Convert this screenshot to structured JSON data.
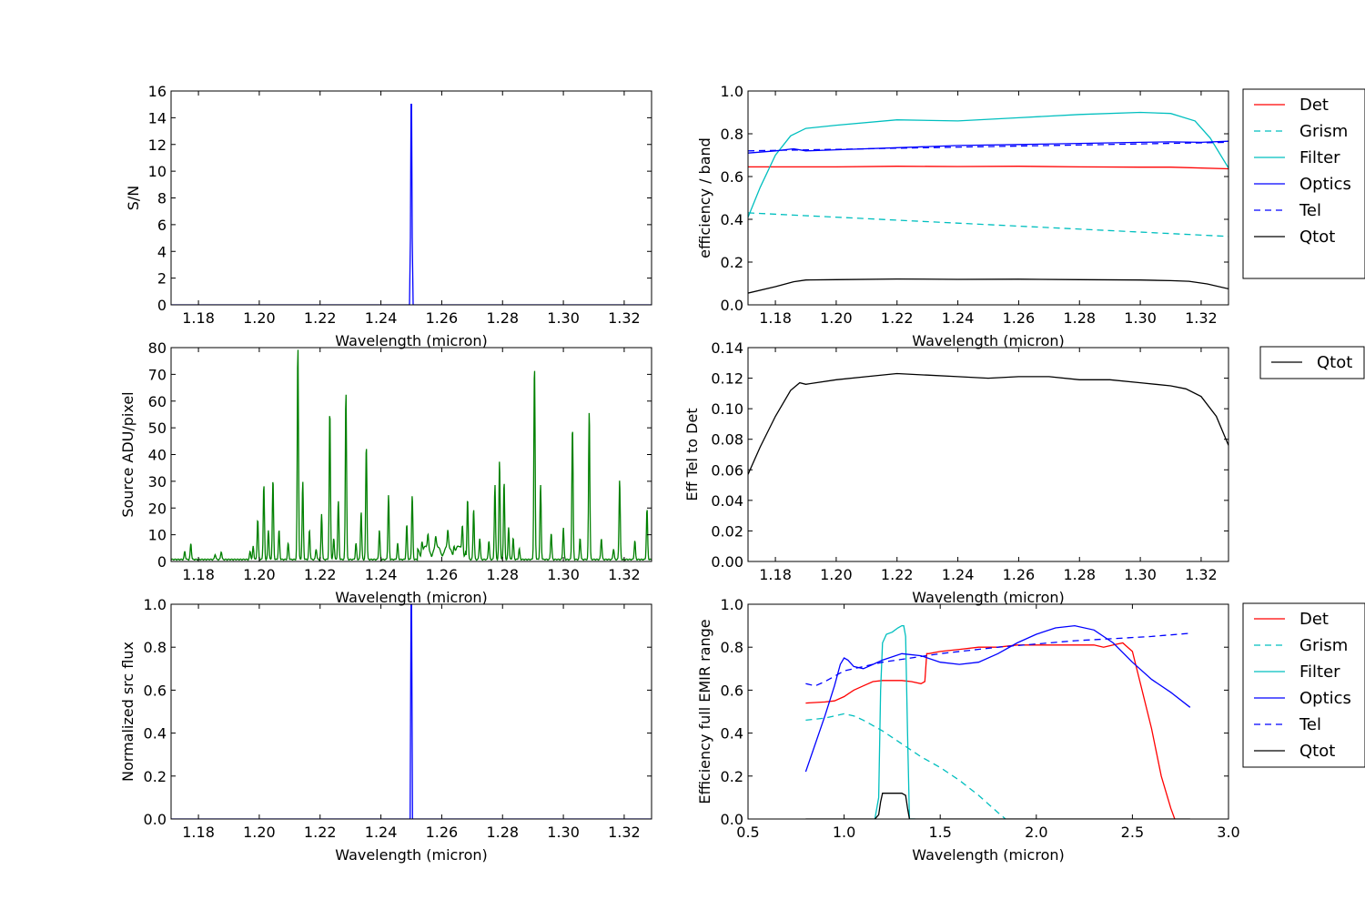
{
  "colors": {
    "Det": "#ff0000",
    "Grism": "#00bfbf",
    "Filter": "#00bfbf",
    "Optics": "#0000ff",
    "Tel": "#0000ff",
    "Qtot": "#000000",
    "sn": "#0000ff",
    "source": "#008000",
    "flux": "#0000ff"
  },
  "chart_data": [
    {
      "id": "sn",
      "type": "line",
      "xlabel": "Wavelength (micron)",
      "ylabel": "S/N",
      "xlim": [
        1.171,
        1.329
      ],
      "ylim": [
        0,
        16
      ],
      "xticks": [
        "1.18",
        "1.20",
        "1.22",
        "1.24",
        "1.26",
        "1.28",
        "1.30",
        "1.32"
      ],
      "yticks": [
        "0",
        "2",
        "4",
        "6",
        "8",
        "10",
        "12",
        "14",
        "16"
      ],
      "series": [
        {
          "color": "sn",
          "style": "solid",
          "x": [
            1.171,
            1.2494,
            1.2497,
            1.2499,
            1.2501,
            1.2503,
            1.2506,
            1.329
          ],
          "y": [
            0,
            0,
            5,
            15.0,
            15.0,
            5,
            0,
            0
          ]
        }
      ]
    },
    {
      "id": "eff",
      "type": "line",
      "xlabel": "Wavelength (micron)",
      "ylabel": "efficiency / band",
      "xlim": [
        1.171,
        1.329
      ],
      "ylim": [
        0,
        1.0
      ],
      "xticks": [
        "1.18",
        "1.20",
        "1.22",
        "1.24",
        "1.26",
        "1.28",
        "1.30",
        "1.32"
      ],
      "yticks": [
        "0.0",
        "0.2",
        "0.4",
        "0.6",
        "0.8",
        "1.0"
      ],
      "legend": [
        "Det",
        "Grism",
        "Filter",
        "Optics",
        "Tel",
        "Qtot"
      ],
      "series": [
        {
          "name": "Det",
          "color": "Det",
          "style": "solid",
          "x": [
            1.171,
            1.2,
            1.22,
            1.24,
            1.26,
            1.28,
            1.3,
            1.31,
            1.329
          ],
          "y": [
            0.645,
            0.645,
            0.648,
            0.647,
            0.648,
            0.645,
            0.644,
            0.644,
            0.636
          ]
        },
        {
          "name": "Grism",
          "color": "Grism",
          "style": "dashed",
          "x": [
            1.171,
            1.329
          ],
          "y": [
            0.43,
            0.32
          ]
        },
        {
          "name": "Filter",
          "color": "Filter",
          "style": "solid",
          "x": [
            1.171,
            1.175,
            1.18,
            1.185,
            1.19,
            1.2,
            1.22,
            1.24,
            1.26,
            1.28,
            1.3,
            1.31,
            1.318,
            1.323,
            1.329
          ],
          "y": [
            0.41,
            0.55,
            0.7,
            0.79,
            0.825,
            0.84,
            0.865,
            0.86,
            0.875,
            0.89,
            0.9,
            0.895,
            0.86,
            0.78,
            0.64
          ]
        },
        {
          "name": "Optics",
          "color": "Optics",
          "style": "solid",
          "x": [
            1.171,
            1.18,
            1.186,
            1.19,
            1.2,
            1.22,
            1.24,
            1.26,
            1.28,
            1.3,
            1.31,
            1.32,
            1.329
          ],
          "y": [
            0.71,
            0.72,
            0.73,
            0.72,
            0.725,
            0.735,
            0.745,
            0.75,
            0.755,
            0.76,
            0.762,
            0.76,
            0.765
          ]
        },
        {
          "name": "Tel",
          "color": "Tel",
          "style": "dashed",
          "x": [
            1.171,
            1.329
          ],
          "y": [
            0.72,
            0.76
          ]
        },
        {
          "name": "Qtot",
          "color": "Qtot",
          "style": "solid",
          "x": [
            1.171,
            1.18,
            1.186,
            1.19,
            1.2,
            1.22,
            1.24,
            1.26,
            1.28,
            1.3,
            1.31,
            1.316,
            1.322,
            1.329
          ],
          "y": [
            0.055,
            0.085,
            0.108,
            0.116,
            0.118,
            0.121,
            0.119,
            0.12,
            0.118,
            0.116,
            0.113,
            0.11,
            0.098,
            0.075
          ]
        }
      ]
    },
    {
      "id": "source",
      "type": "line",
      "xlabel": "Wavelength (micron)",
      "ylabel": "Source ADU/pixel",
      "xlim": [
        1.171,
        1.329
      ],
      "ylim": [
        0,
        80
      ],
      "xticks": [
        "1.18",
        "1.20",
        "1.22",
        "1.24",
        "1.26",
        "1.28",
        "1.30",
        "1.32"
      ],
      "yticks": [
        "0",
        "10",
        "20",
        "30",
        "40",
        "50",
        "60",
        "70",
        "80"
      ],
      "baseline": 0.5,
      "peaks": [
        [
          1.1755,
          3
        ],
        [
          1.1775,
          6
        ],
        [
          1.1855,
          2
        ],
        [
          1.1875,
          3
        ],
        [
          1.197,
          3
        ],
        [
          1.198,
          5
        ],
        [
          1.1995,
          15
        ],
        [
          1.2015,
          28
        ],
        [
          1.203,
          11
        ],
        [
          1.2045,
          30
        ],
        [
          1.2065,
          11
        ],
        [
          1.2095,
          6
        ],
        [
          1.2127,
          80
        ],
        [
          1.2143,
          29
        ],
        [
          1.2165,
          11
        ],
        [
          1.2187,
          4
        ],
        [
          1.2205,
          17
        ],
        [
          1.2232,
          56
        ],
        [
          1.2245,
          8
        ],
        [
          1.226,
          22
        ],
        [
          1.2285,
          63
        ],
        [
          1.2318,
          6
        ],
        [
          1.2335,
          18
        ],
        [
          1.2352,
          43
        ],
        [
          1.2395,
          11
        ],
        [
          1.2425,
          24
        ],
        [
          1.2455,
          6
        ],
        [
          1.2485,
          13
        ],
        [
          1.2503,
          24
        ],
        [
          1.2535,
          4
        ],
        [
          1.2555,
          5
        ],
        [
          1.258,
          4
        ],
        [
          1.262,
          6
        ],
        [
          1.264,
          3
        ],
        [
          1.2668,
          10
        ],
        [
          1.2685,
          23
        ],
        [
          1.2705,
          19
        ],
        [
          1.2725,
          8
        ],
        [
          1.2755,
          7
        ],
        [
          1.2775,
          28
        ],
        [
          1.279,
          37
        ],
        [
          1.2805,
          29
        ],
        [
          1.282,
          12
        ],
        [
          1.2835,
          8
        ],
        [
          1.2855,
          4
        ],
        [
          1.2905,
          73
        ],
        [
          1.2925,
          28
        ],
        [
          1.296,
          10
        ],
        [
          1.3,
          12
        ],
        [
          1.303,
          50
        ],
        [
          1.3055,
          8
        ],
        [
          1.3085,
          56
        ],
        [
          1.3125,
          8
        ],
        [
          1.3165,
          4
        ],
        [
          1.3185,
          30
        ],
        [
          1.3235,
          7
        ],
        [
          1.3275,
          19
        ]
      ],
      "series": [
        {
          "color": "source",
          "style": "solid"
        }
      ]
    },
    {
      "id": "tel",
      "type": "line",
      "xlabel": "Wavelength (micron)",
      "ylabel": "Eff Tel to Det",
      "xlim": [
        1.171,
        1.329
      ],
      "ylim": [
        0,
        0.14
      ],
      "xticks": [
        "1.18",
        "1.20",
        "1.22",
        "1.24",
        "1.26",
        "1.28",
        "1.30",
        "1.32"
      ],
      "yticks": [
        "0.00",
        "0.02",
        "0.04",
        "0.06",
        "0.08",
        "0.10",
        "0.12",
        "0.14"
      ],
      "legend": [
        "Qtot"
      ],
      "series": [
        {
          "name": "Qtot",
          "color": "Qtot",
          "style": "solid",
          "x": [
            1.171,
            1.175,
            1.18,
            1.185,
            1.188,
            1.19,
            1.2,
            1.21,
            1.22,
            1.23,
            1.24,
            1.25,
            1.26,
            1.27,
            1.28,
            1.29,
            1.3,
            1.31,
            1.315,
            1.32,
            1.325,
            1.329
          ],
          "y": [
            0.057,
            0.075,
            0.095,
            0.112,
            0.117,
            0.116,
            0.119,
            0.121,
            0.123,
            0.122,
            0.121,
            0.12,
            0.121,
            0.121,
            0.119,
            0.119,
            0.117,
            0.115,
            0.113,
            0.108,
            0.095,
            0.076
          ]
        }
      ]
    },
    {
      "id": "flux",
      "type": "line",
      "xlabel": "Wavelength (micron)",
      "ylabel": "Normalized src flux",
      "xlim": [
        1.171,
        1.329
      ],
      "ylim": [
        0,
        1.0
      ],
      "xticks": [
        "1.18",
        "1.20",
        "1.22",
        "1.24",
        "1.26",
        "1.28",
        "1.30",
        "1.32"
      ],
      "yticks": [
        "0.0",
        "0.2",
        "0.4",
        "0.6",
        "0.8",
        "1.0"
      ],
      "series": [
        {
          "color": "flux",
          "style": "solid",
          "x": [
            1.171,
            1.2496,
            1.2499,
            1.2501,
            1.2504,
            1.329
          ],
          "y": [
            0,
            0,
            1.0,
            1.0,
            0,
            0
          ]
        }
      ]
    },
    {
      "id": "full",
      "type": "line",
      "xlabel": "Wavelength (micron)",
      "ylabel": "Efficiency full EMIR range",
      "xlim": [
        0.5,
        3.0
      ],
      "ylim": [
        0,
        1.0
      ],
      "xticks": [
        "0.5",
        "1.0",
        "1.5",
        "2.0",
        "2.5",
        "3.0"
      ],
      "yticks": [
        "0.0",
        "0.2",
        "0.4",
        "0.6",
        "0.8",
        "1.0"
      ],
      "legend": [
        "Det",
        "Grism",
        "Filter",
        "Optics",
        "Tel",
        "Qtot"
      ],
      "series": [
        {
          "name": "Det",
          "color": "Det",
          "style": "solid",
          "x": [
            0.8,
            0.9,
            0.95,
            1.0,
            1.05,
            1.1,
            1.15,
            1.2,
            1.3,
            1.35,
            1.4,
            1.42,
            1.43,
            1.44,
            1.5,
            1.6,
            1.7,
            1.8,
            1.9,
            2.0,
            2.1,
            2.2,
            2.3,
            2.35,
            2.4,
            2.45,
            2.5,
            2.55,
            2.6,
            2.65,
            2.7,
            2.72
          ],
          "y": [
            0.54,
            0.545,
            0.55,
            0.57,
            0.6,
            0.62,
            0.64,
            0.645,
            0.645,
            0.64,
            0.63,
            0.64,
            0.77,
            0.77,
            0.78,
            0.79,
            0.8,
            0.8,
            0.81,
            0.81,
            0.81,
            0.81,
            0.81,
            0.8,
            0.81,
            0.82,
            0.78,
            0.6,
            0.42,
            0.2,
            0.05,
            0.0
          ]
        },
        {
          "name": "Grism",
          "color": "Grism",
          "style": "dashed",
          "x": [
            0.8,
            0.9,
            1.0,
            1.05,
            1.1,
            1.2,
            1.3,
            1.4,
            1.5,
            1.6,
            1.7,
            1.8,
            1.84
          ],
          "y": [
            0.46,
            0.47,
            0.49,
            0.48,
            0.46,
            0.41,
            0.35,
            0.29,
            0.24,
            0.18,
            0.11,
            0.03,
            0.0
          ]
        },
        {
          "name": "Filter",
          "color": "Filter",
          "style": "solid",
          "x": [
            1.16,
            1.18,
            1.19,
            1.2,
            1.22,
            1.25,
            1.28,
            1.3,
            1.31,
            1.32,
            1.33,
            1.34,
            1.37
          ],
          "y": [
            0.0,
            0.1,
            0.6,
            0.82,
            0.86,
            0.87,
            0.89,
            0.9,
            0.9,
            0.85,
            0.4,
            0.0,
            0.0
          ]
        },
        {
          "name": "Optics",
          "color": "Optics",
          "style": "solid",
          "x": [
            0.8,
            0.9,
            0.95,
            0.98,
            1.0,
            1.02,
            1.05,
            1.1,
            1.15,
            1.2,
            1.3,
            1.4,
            1.5,
            1.6,
            1.7,
            1.8,
            1.9,
            2.0,
            2.1,
            2.2,
            2.3,
            2.4,
            2.5,
            2.6,
            2.7,
            2.8
          ],
          "y": [
            0.22,
            0.48,
            0.62,
            0.72,
            0.75,
            0.74,
            0.71,
            0.7,
            0.72,
            0.74,
            0.77,
            0.76,
            0.73,
            0.72,
            0.73,
            0.77,
            0.82,
            0.86,
            0.89,
            0.9,
            0.88,
            0.82,
            0.73,
            0.65,
            0.59,
            0.52
          ]
        },
        {
          "name": "Tel",
          "color": "Tel",
          "style": "dashed",
          "x": [
            0.8,
            0.85,
            0.9,
            1.0,
            1.2,
            1.5,
            1.8,
            2.0,
            2.2,
            2.4,
            2.6,
            2.8
          ],
          "y": [
            0.63,
            0.62,
            0.64,
            0.69,
            0.73,
            0.77,
            0.8,
            0.815,
            0.83,
            0.84,
            0.85,
            0.865
          ]
        },
        {
          "name": "Qtot",
          "color": "Qtot",
          "style": "solid",
          "x": [
            0.8,
            1.16,
            1.18,
            1.19,
            1.2,
            1.25,
            1.3,
            1.32,
            1.33,
            1.34,
            2.8
          ],
          "y": [
            0.0,
            0.0,
            0.02,
            0.08,
            0.12,
            0.12,
            0.12,
            0.11,
            0.05,
            0.0,
            0.0
          ]
        }
      ]
    }
  ]
}
